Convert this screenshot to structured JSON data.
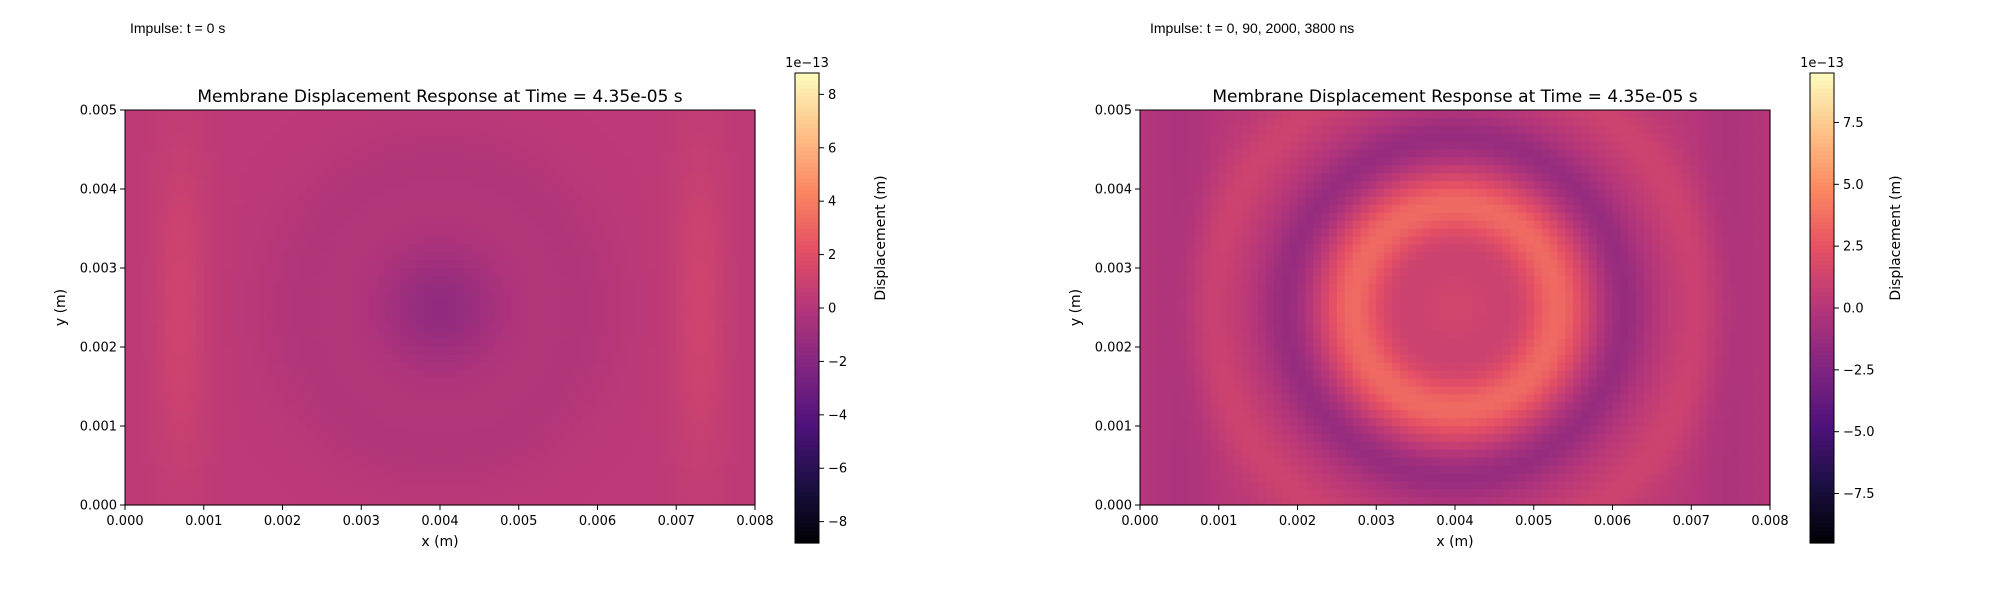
{
  "captions": {
    "left": "Impulse: t = 0 s",
    "right": "Impulse: t = 0, 90, 2000, 3800 ns"
  },
  "colormap": {
    "name": "magma",
    "stops": [
      "#000004",
      "#1c1044",
      "#4f127b",
      "#812581",
      "#b5367a",
      "#e55064",
      "#fb8761",
      "#fec287",
      "#fcfdbf"
    ]
  },
  "chart_data": [
    {
      "type": "heatmap",
      "title": "Membrane Displacement Response at Time = 4.35e-05 s",
      "xlabel": "x (m)",
      "ylabel": "y (m)",
      "xlim": [
        0.0,
        0.008
      ],
      "ylim": [
        0.0,
        0.005
      ],
      "xticks": [
        "0.000",
        "0.001",
        "0.002",
        "0.003",
        "0.004",
        "0.005",
        "0.006",
        "0.007",
        "0.008"
      ],
      "yticks": [
        "0.000",
        "0.001",
        "0.002",
        "0.003",
        "0.004",
        "0.005"
      ],
      "colorbar": {
        "label": "Displacement (m)",
        "offset_text": "1e−13",
        "range": [
          -8.8,
          8.8
        ],
        "ticks": [
          -8,
          -6,
          -4,
          -2,
          0,
          2,
          4,
          6,
          8
        ],
        "tick_labels": [
          "−8",
          "−6",
          "−4",
          "−2",
          "0",
          "2",
          "4",
          "6",
          "8"
        ]
      },
      "field": {
        "unit_scale": "1e-13 m",
        "description_values": {
          "background": 0.3,
          "center_min": -1.5,
          "edge_bands": 1.0
        },
        "center": [
          0.004,
          0.0025
        ]
      }
    },
    {
      "type": "heatmap",
      "title": "Membrane Displacement Response at Time = 4.35e-05 s",
      "xlabel": "x (m)",
      "ylabel": "y (m)",
      "xlim": [
        0.0,
        0.008
      ],
      "ylim": [
        0.0,
        0.005
      ],
      "xticks": [
        "0.000",
        "0.001",
        "0.002",
        "0.003",
        "0.004",
        "0.005",
        "0.006",
        "0.007",
        "0.008"
      ],
      "yticks": [
        "0.000",
        "0.001",
        "0.002",
        "0.003",
        "0.004",
        "0.005"
      ],
      "colorbar": {
        "label": "Displacement (m)",
        "offset_text": "1e−13",
        "range": [
          -9.5,
          9.5
        ],
        "ticks": [
          -7.5,
          -5.0,
          -2.5,
          0.0,
          2.5,
          5.0,
          7.5
        ],
        "tick_labels": [
          "−7.5",
          "−5.0",
          "−2.5",
          "0.0",
          "2.5",
          "5.0",
          "7.5"
        ]
      },
      "field": {
        "unit_scale": "1e-13 m",
        "description_values": {
          "ring_peak": 3.0,
          "center": 1.0,
          "trough": -1.5,
          "background": 0.0
        },
        "center": [
          0.004,
          0.0025
        ]
      }
    }
  ]
}
